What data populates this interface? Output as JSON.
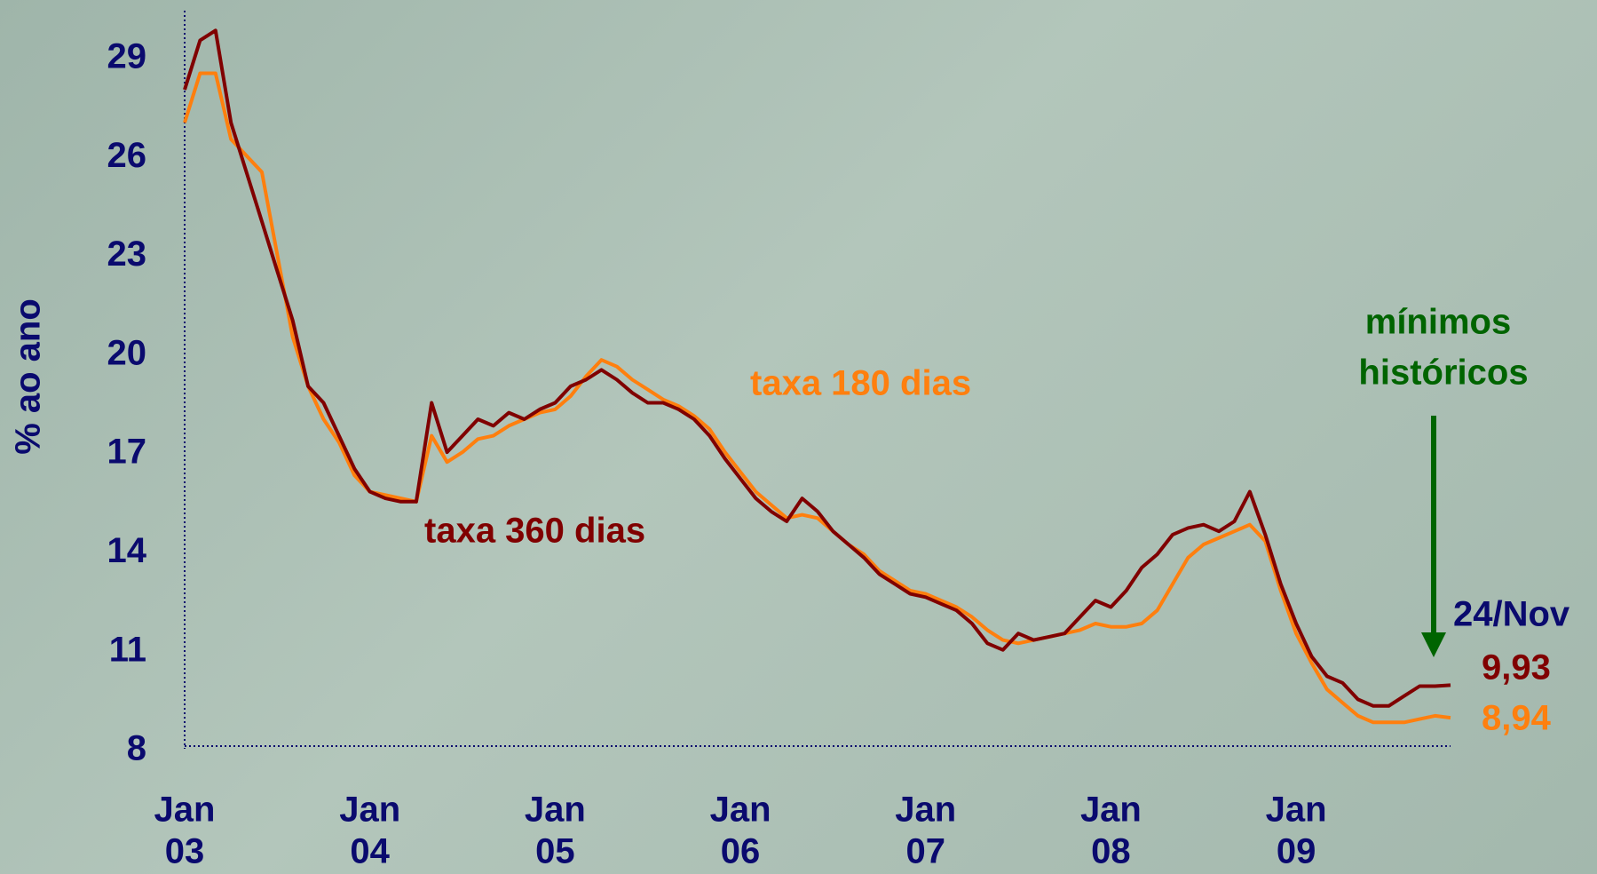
{
  "chart_data": {
    "type": "line",
    "y_label": "% ao ano",
    "x": [
      "2003-01",
      "2003-02",
      "2003-03",
      "2003-04",
      "2003-05",
      "2003-06",
      "2003-07",
      "2003-08",
      "2003-09",
      "2003-10",
      "2003-11",
      "2003-12",
      "2004-01",
      "2004-02",
      "2004-03",
      "2004-04",
      "2004-05",
      "2004-06",
      "2004-07",
      "2004-08",
      "2004-09",
      "2004-10",
      "2004-11",
      "2004-12",
      "2005-01",
      "2005-02",
      "2005-03",
      "2005-04",
      "2005-05",
      "2005-06",
      "2005-07",
      "2005-08",
      "2005-09",
      "2005-10",
      "2005-11",
      "2005-12",
      "2006-01",
      "2006-02",
      "2006-03",
      "2006-04",
      "2006-05",
      "2006-06",
      "2006-07",
      "2006-08",
      "2006-09",
      "2006-10",
      "2006-11",
      "2006-12",
      "2007-01",
      "2007-02",
      "2007-03",
      "2007-04",
      "2007-05",
      "2007-06",
      "2007-07",
      "2007-08",
      "2007-09",
      "2007-10",
      "2007-11",
      "2007-12",
      "2008-01",
      "2008-02",
      "2008-03",
      "2008-04",
      "2008-05",
      "2008-06",
      "2008-07",
      "2008-08",
      "2008-09",
      "2008-10",
      "2008-11",
      "2008-12",
      "2009-01",
      "2009-02",
      "2009-03",
      "2009-04",
      "2009-05",
      "2009-06",
      "2009-07",
      "2009-08",
      "2009-09",
      "2009-10",
      "2009-11"
    ],
    "series": [
      {
        "name": "taxa 360 dias",
        "color": "#800000",
        "end_label": "9,93",
        "values": [
          28,
          29.5,
          29.8,
          27,
          25.5,
          24,
          22.5,
          21,
          19,
          18.5,
          17.5,
          16.5,
          15.8,
          15.6,
          15.5,
          15.5,
          18.5,
          17,
          17.5,
          18,
          17.8,
          18.2,
          18,
          18.3,
          18.5,
          19,
          19.2,
          19.5,
          19.2,
          18.8,
          18.5,
          18.5,
          18.3,
          18,
          17.5,
          16.8,
          16.2,
          15.6,
          15.2,
          14.9,
          15.6,
          15.2,
          14.6,
          14.2,
          13.8,
          13.3,
          13,
          12.7,
          12.6,
          12.4,
          12.2,
          11.8,
          11.2,
          11,
          11.5,
          11.3,
          11.4,
          11.5,
          12,
          12.5,
          12.3,
          12.8,
          13.5,
          13.9,
          14.5,
          14.7,
          14.8,
          14.6,
          14.9,
          15.8,
          14.5,
          13,
          11.8,
          10.8,
          10.2,
          10,
          9.5,
          9.3,
          9.3,
          9.6,
          9.9,
          9.9,
          9.93
        ]
      },
      {
        "name": "taxa 180 dias",
        "color": "#ff7f0e",
        "end_label": "8,94",
        "values": [
          27,
          28.5,
          28.5,
          26.5,
          26,
          25.5,
          23,
          20.5,
          19,
          18,
          17.3,
          16.3,
          15.8,
          15.7,
          15.6,
          15.5,
          17.5,
          16.7,
          17,
          17.4,
          17.5,
          17.8,
          18,
          18.2,
          18.3,
          18.7,
          19.3,
          19.8,
          19.6,
          19.2,
          18.9,
          18.6,
          18.4,
          18.1,
          17.7,
          17,
          16.4,
          15.8,
          15.4,
          15,
          15.1,
          15,
          14.6,
          14.2,
          13.9,
          13.4,
          13.1,
          12.8,
          12.7,
          12.5,
          12.3,
          12,
          11.6,
          11.3,
          11.2,
          11.3,
          11.4,
          11.5,
          11.6,
          11.8,
          11.7,
          11.7,
          11.8,
          12.2,
          13,
          13.8,
          14.2,
          14.4,
          14.6,
          14.8,
          14.3,
          12.8,
          11.5,
          10.6,
          9.8,
          9.4,
          9,
          8.8,
          8.8,
          8.8,
          8.9,
          9,
          8.94
        ]
      }
    ],
    "xlim": [
      "2003-01",
      "2009-11"
    ],
    "xticks": [
      {
        "value": "2003-01",
        "label": [
          "Jan",
          "03"
        ]
      },
      {
        "value": "2004-01",
        "label": [
          "Jan",
          "04"
        ]
      },
      {
        "value": "2005-01",
        "label": [
          "Jan",
          "05"
        ]
      },
      {
        "value": "2006-01",
        "label": [
          "Jan",
          "06"
        ]
      },
      {
        "value": "2007-01",
        "label": [
          "Jan",
          "07"
        ]
      },
      {
        "value": "2008-01",
        "label": [
          "Jan",
          "08"
        ]
      },
      {
        "value": "2009-01",
        "label": [
          "Jan",
          "09"
        ]
      }
    ],
    "ylim": [
      8,
      30.4
    ],
    "yticks": [
      8,
      11,
      14,
      17,
      20,
      23,
      26,
      29
    ],
    "annotations": {
      "minimos": [
        "mínimos",
        "históricos"
      ],
      "date": "24/Nov"
    }
  }
}
